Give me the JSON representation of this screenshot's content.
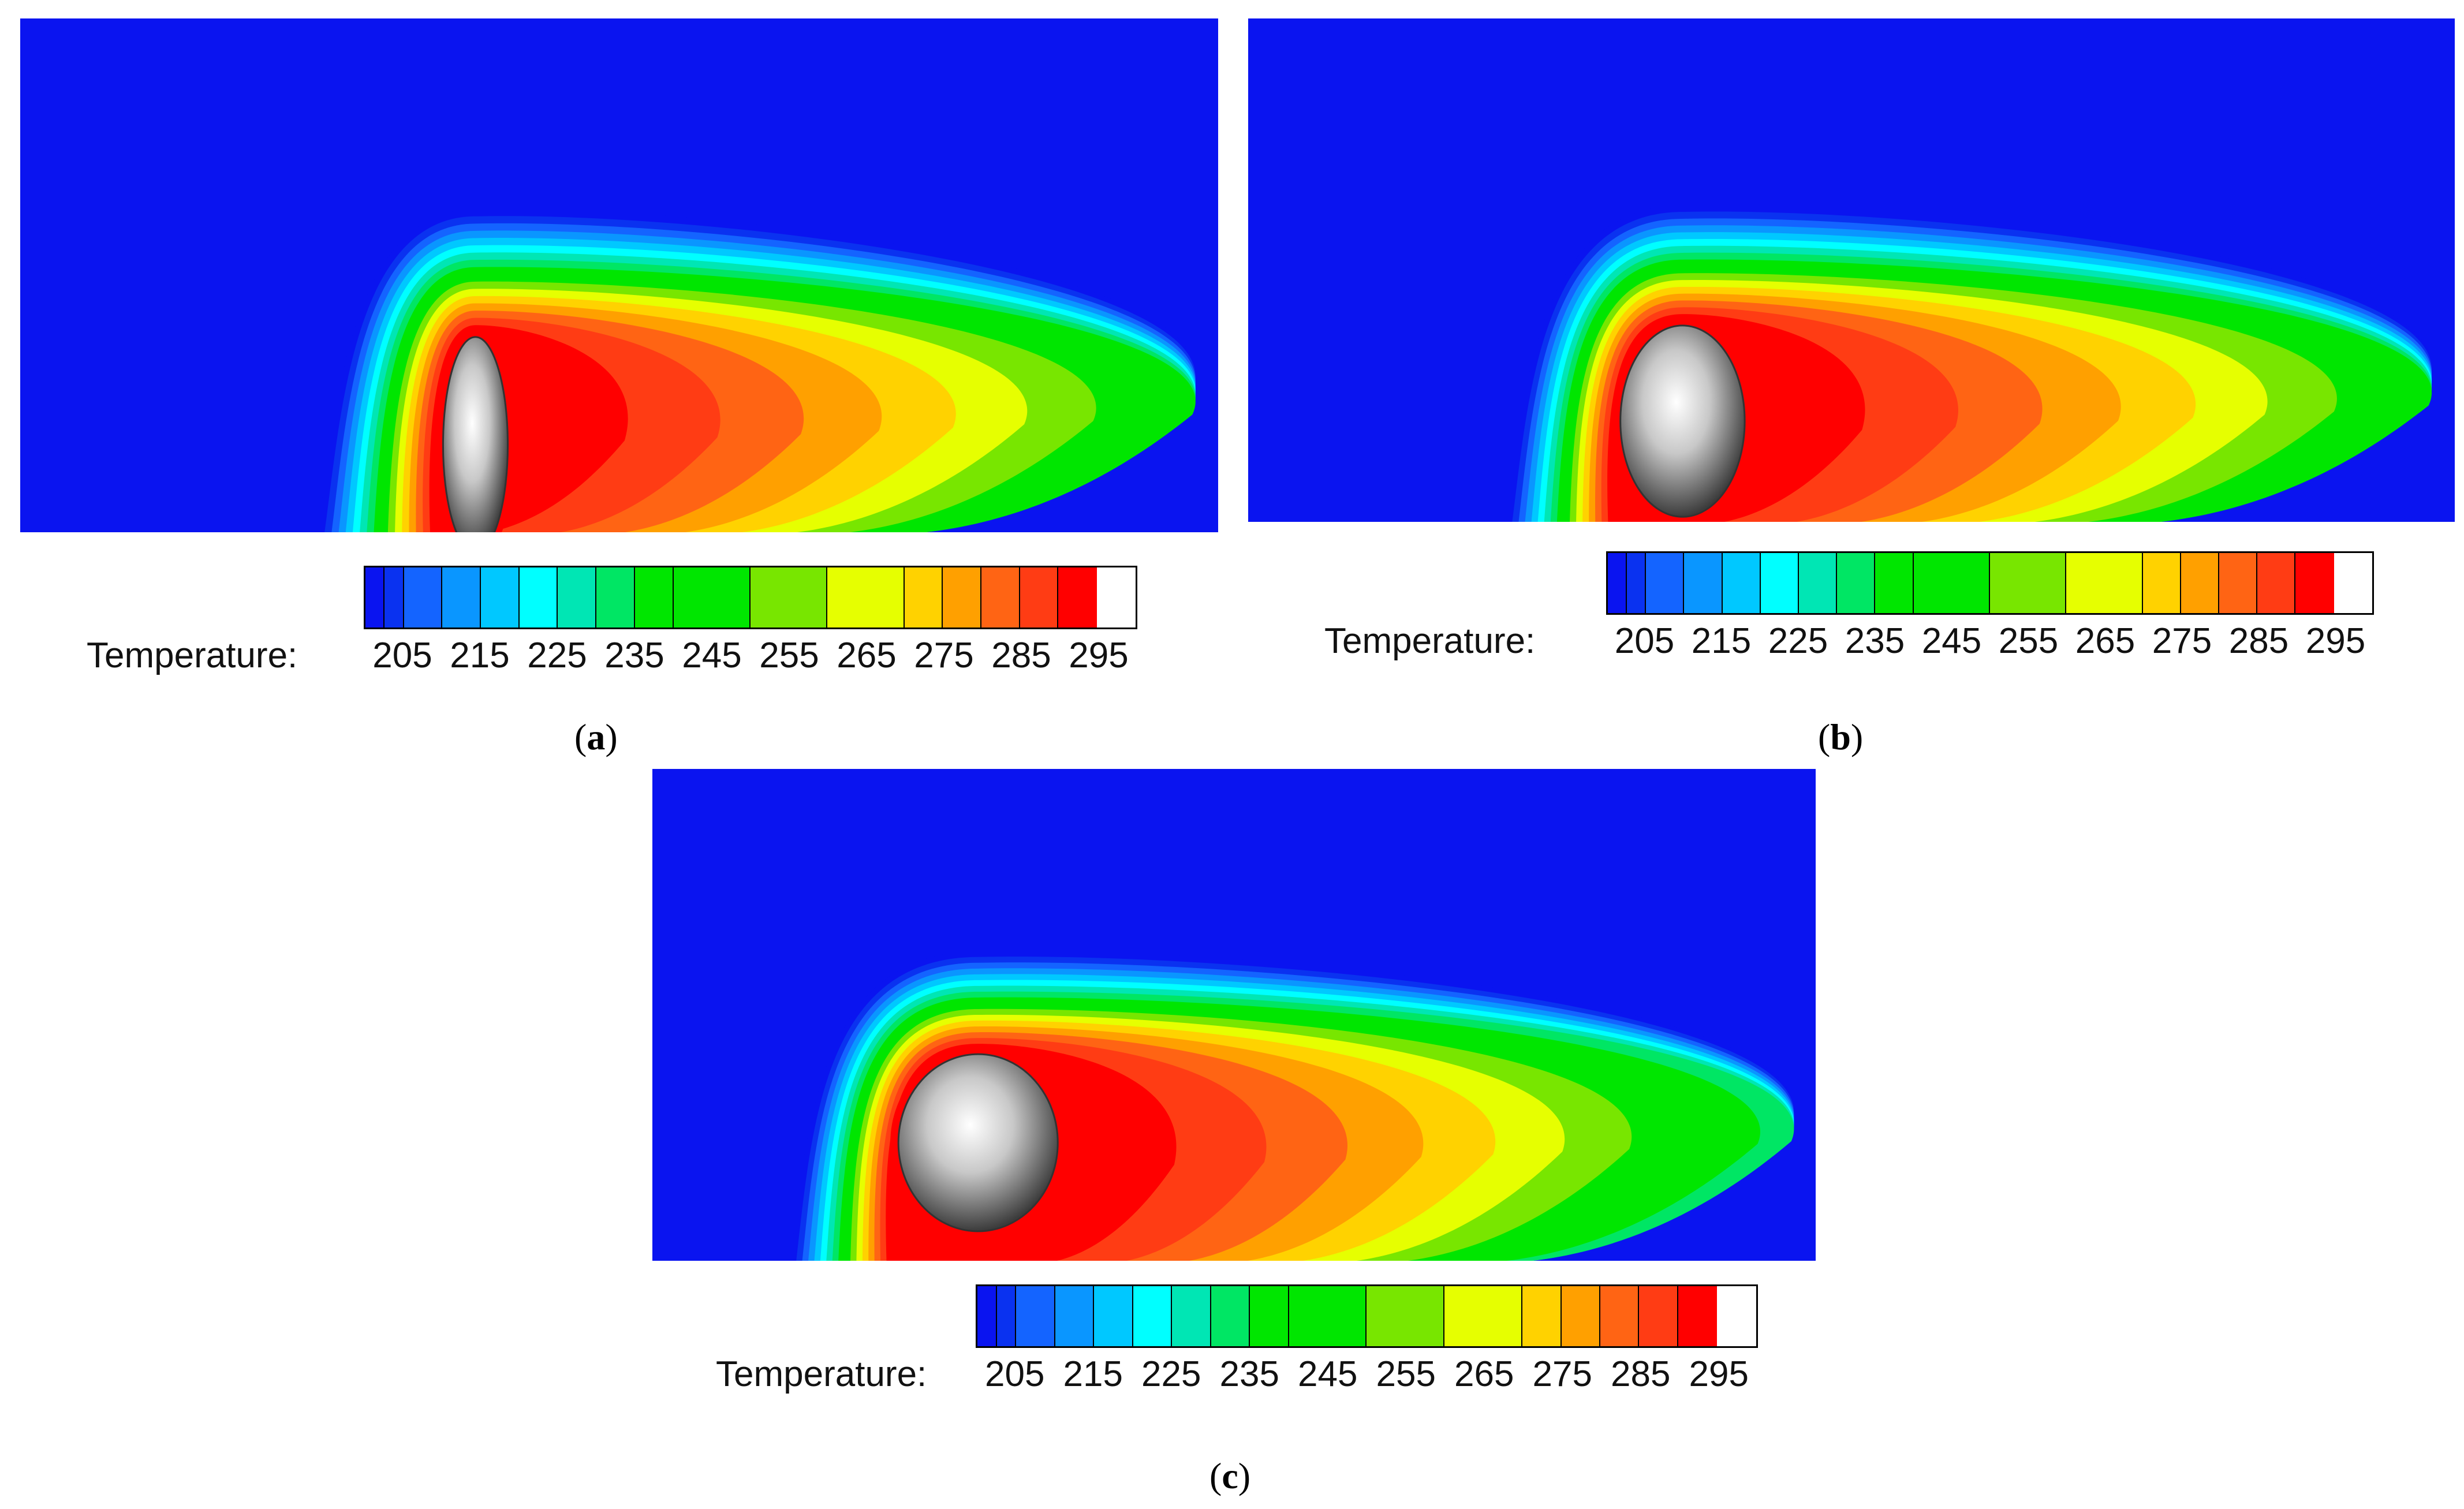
{
  "chart_data": [
    {
      "type": "heatmap",
      "panel_label": "a",
      "legend_title": "Temperature:",
      "tick_labels": [
        "205",
        "215",
        "225",
        "235",
        "245",
        "255",
        "265",
        "275",
        "285",
        "295"
      ],
      "ticks": [
        205,
        215,
        225,
        235,
        245,
        255,
        265,
        275,
        285,
        295
      ],
      "range": [
        200,
        300
      ],
      "levels": [
        200,
        205,
        210,
        215,
        220,
        225,
        230,
        235,
        240,
        245,
        250,
        255,
        260,
        265,
        270,
        275,
        280,
        285,
        290,
        295,
        300
      ],
      "colormap": [
        "#0a14f0",
        "#0a32f0",
        "#1464ff",
        "#0a96ff",
        "#00c8ff",
        "#00ffff",
        "#00e6b4",
        "#00e664",
        "#00e600",
        "#00e600",
        "#78e600",
        "#e6ff00",
        "#ffd200",
        "#ffa000",
        "#ff6414",
        "#ff3c14",
        "#ff0000"
      ],
      "object_shape": "ellipse (narrow)",
      "object_aspect": 0.3
    },
    {
      "type": "heatmap",
      "panel_label": "b",
      "legend_title": "Temperature:",
      "tick_labels": [
        "205",
        "215",
        "225",
        "235",
        "245",
        "255",
        "265",
        "275",
        "285",
        "295"
      ],
      "ticks": [
        205,
        215,
        225,
        235,
        245,
        255,
        265,
        275,
        285,
        295
      ],
      "range": [
        200,
        300
      ],
      "levels": [
        200,
        205,
        210,
        215,
        220,
        225,
        230,
        235,
        240,
        245,
        250,
        255,
        260,
        265,
        270,
        275,
        280,
        285,
        290,
        295,
        300
      ],
      "colormap": [
        "#0a14f0",
        "#0a32f0",
        "#1464ff",
        "#0a96ff",
        "#00c8ff",
        "#00ffff",
        "#00e6b4",
        "#00e664",
        "#00e600",
        "#00e600",
        "#78e600",
        "#e6ff00",
        "#ffd200",
        "#ffa000",
        "#ff6414",
        "#ff3c14",
        "#ff0000"
      ],
      "object_shape": "ellipse",
      "object_aspect": 0.65
    },
    {
      "type": "heatmap",
      "panel_label": "c",
      "legend_title": "Temperature:",
      "tick_labels": [
        "205",
        "215",
        "225",
        "235",
        "245",
        "255",
        "265",
        "275",
        "285",
        "295"
      ],
      "ticks": [
        205,
        215,
        225,
        235,
        245,
        255,
        265,
        275,
        285,
        295
      ],
      "range": [
        200,
        300
      ],
      "levels": [
        200,
        205,
        210,
        215,
        220,
        225,
        230,
        235,
        240,
        245,
        250,
        255,
        260,
        265,
        270,
        275,
        280,
        285,
        290,
        295,
        300
      ],
      "colormap": [
        "#0a14f0",
        "#0a32f0",
        "#1464ff",
        "#0a96ff",
        "#00c8ff",
        "#00ffff",
        "#00e6b4",
        "#00e664",
        "#00e600",
        "#00e600",
        "#78e600",
        "#e6ff00",
        "#ffd200",
        "#ffa000",
        "#ff6414",
        "#ff3c14",
        "#ff0000"
      ],
      "object_shape": "ellipse (round)",
      "object_aspect": 0.9
    }
  ]
}
